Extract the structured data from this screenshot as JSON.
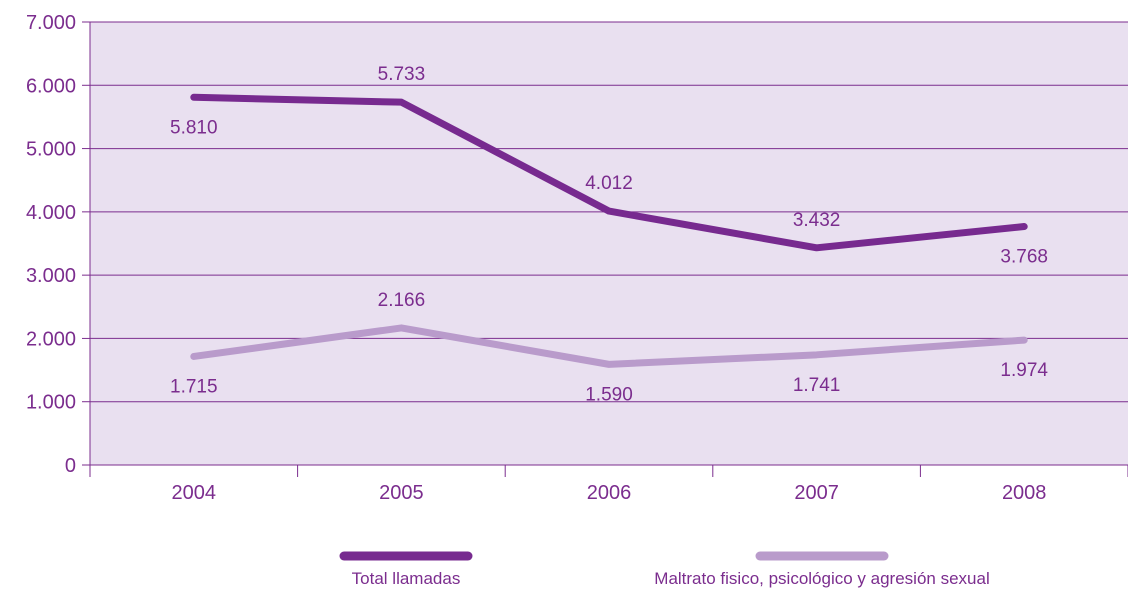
{
  "chart_data": {
    "type": "line",
    "title": "",
    "xlabel": "",
    "ylabel": "",
    "categories": [
      "2004",
      "2005",
      "2006",
      "2007",
      "2008"
    ],
    "ylim": [
      0,
      7000
    ],
    "yticks": [
      0,
      1000,
      2000,
      3000,
      4000,
      5000,
      6000,
      7000
    ],
    "ytick_labels": [
      "0",
      "1.000",
      "2.000",
      "3.000",
      "4.000",
      "5.000",
      "6.000",
      "7.000"
    ],
    "grid": "horizontal",
    "plot_background": "#e9e0f0",
    "legend_position": "bottom",
    "series": [
      {
        "name": "Total llamadas",
        "color": "#772a8f",
        "values": [
          5810,
          5733,
          4012,
          3432,
          3768
        ],
        "value_labels": [
          "5.810",
          "5.733",
          "4.012",
          "3.432",
          "3.768"
        ],
        "label_placement": [
          "below",
          "above",
          "above",
          "above",
          "below"
        ]
      },
      {
        "name": "Maltrato fisico, psicológico y agresión sexual",
        "color": "#b99bcb",
        "values": [
          1715,
          2166,
          1590,
          1741,
          1974
        ],
        "value_labels": [
          "1.715",
          "2.166",
          "1.590",
          "1.741",
          "1.974"
        ],
        "label_placement": [
          "below",
          "above",
          "below",
          "below",
          "below"
        ]
      }
    ]
  }
}
